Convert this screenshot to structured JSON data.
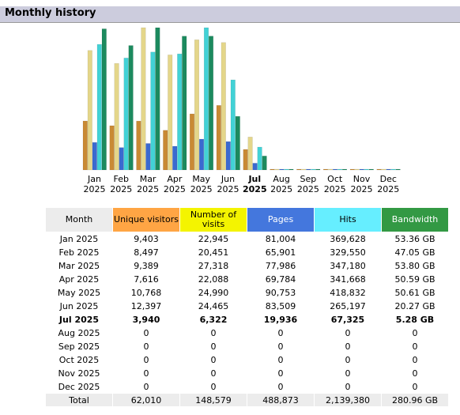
{
  "header": {
    "title": "Monthly history"
  },
  "chart_data": {
    "type": "bar",
    "categories": [
      "Jan",
      "Feb",
      "Mar",
      "Apr",
      "May",
      "Jun",
      "Jul",
      "Aug",
      "Sep",
      "Oct",
      "Nov",
      "Dec"
    ],
    "years": [
      "2025",
      "2025",
      "2025",
      "2025",
      "2025",
      "2025",
      "2025",
      "2025",
      "2025",
      "2025",
      "2025",
      "2025"
    ],
    "series": [
      {
        "name": "Unique visitors",
        "color": "#c98a34",
        "header_color": "#ffa544",
        "values": [
          9403,
          8497,
          9389,
          7616,
          10768,
          12397,
          3940,
          0,
          0,
          0,
          0,
          0
        ],
        "value_labels": [
          "9,403",
          "8,497",
          "9,389",
          "7,616",
          "10,768",
          "12,397",
          "3,940",
          "0",
          "0",
          "0",
          "0",
          "0"
        ]
      },
      {
        "name": "Number of visits",
        "color": "#e4d68a",
        "header_color": "#f4f400",
        "values": [
          22945,
          20451,
          27318,
          22088,
          24990,
          24465,
          6322,
          0,
          0,
          0,
          0,
          0
        ],
        "value_labels": [
          "22,945",
          "20,451",
          "27,318",
          "22,088",
          "24,990",
          "24,465",
          "6,322",
          "0",
          "0",
          "0",
          "0",
          "0"
        ]
      },
      {
        "name": "Pages",
        "color": "#3a6ad0",
        "header_color": "#4477dd",
        "values": [
          81004,
          65901,
          77986,
          69784,
          90753,
          83509,
          19936,
          0,
          0,
          0,
          0,
          0
        ],
        "value_labels": [
          "81,004",
          "65,901",
          "77,986",
          "69,784",
          "90,753",
          "83,509",
          "19,936",
          "0",
          "0",
          "0",
          "0",
          "0"
        ]
      },
      {
        "name": "Hits",
        "color": "#42d2d6",
        "header_color": "#66eeff",
        "values": [
          369628,
          329550,
          347180,
          341668,
          418832,
          265197,
          67325,
          0,
          0,
          0,
          0,
          0
        ],
        "value_labels": [
          "369,628",
          "329,550",
          "347,180",
          "341,668",
          "418,832",
          "265,197",
          "67,325",
          "0",
          "0",
          "0",
          "0",
          "0"
        ]
      },
      {
        "name": "Bandwidth",
        "color": "#1c8a5e",
        "header_color": "#339944",
        "values": [
          53.36,
          47.05,
          53.8,
          50.59,
          50.61,
          20.27,
          5.28,
          0,
          0,
          0,
          0,
          0
        ],
        "value_labels": [
          "53.36 GB",
          "47.05 GB",
          "53.80 GB",
          "50.59 GB",
          "50.61 GB",
          "20.27 GB",
          "5.28 GB",
          "0",
          "0",
          "0",
          "0",
          "0"
        ]
      }
    ]
  },
  "table": {
    "month_header": "Month",
    "rows": [
      "Jan 2025",
      "Feb 2025",
      "Mar 2025",
      "Apr 2025",
      "May 2025",
      "Jun 2025",
      "Jul 2025",
      "Aug 2025",
      "Sep 2025",
      "Oct 2025",
      "Nov 2025",
      "Dec 2025"
    ],
    "total_label": "Total",
    "totals": [
      "62,010",
      "148,579",
      "488,873",
      "2,139,380",
      "280.96 GB"
    ]
  }
}
